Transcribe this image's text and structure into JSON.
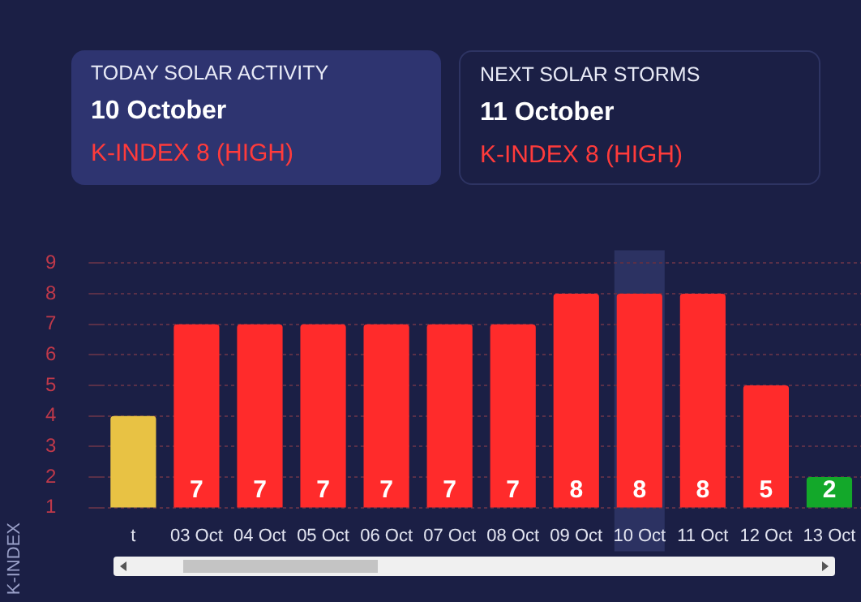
{
  "chart_data": {
    "type": "bar",
    "annotations": [
      "TODAY SOLAR ACTIVITY",
      "10 October",
      "K-INDEX 8 (HIGH)",
      "NEXT SOLAR STORMS",
      "11 October",
      "K-INDEX 8 (HIGH)"
    ],
    "ylabel": "K-INDEX",
    "categories": [
      "t",
      "03 Oct",
      "04 Oct",
      "05 Oct",
      "06 Oct",
      "07 Oct",
      "08 Oct",
      "09 Oct",
      "10 Oct",
      "11 Oct",
      "12 Oct",
      "13 Oct"
    ],
    "values": [
      4,
      7,
      7,
      7,
      7,
      7,
      7,
      8,
      8,
      8,
      5,
      2
    ],
    "colors": [
      "#e8c244",
      "#ff2b2b",
      "#ff2b2b",
      "#ff2b2b",
      "#ff2b2b",
      "#ff2b2b",
      "#ff2b2b",
      "#ff2b2b",
      "#ff2b2b",
      "#ff2b2b",
      "#ff2b2b",
      "#13a82a"
    ],
    "value_labels": [
      null,
      "7",
      "7",
      "7",
      "7",
      "7",
      "7",
      "8",
      "8",
      "8",
      "5",
      "2"
    ],
    "ylim": [
      1,
      9
    ],
    "yticks": [
      1,
      2,
      3,
      4,
      5,
      6,
      7,
      8,
      9
    ],
    "grid": "y",
    "bands": [
      {
        "axis": "x",
        "from": "10 Oct",
        "to": "10 Oct",
        "color": "#2c3262"
      }
    ]
  }
}
